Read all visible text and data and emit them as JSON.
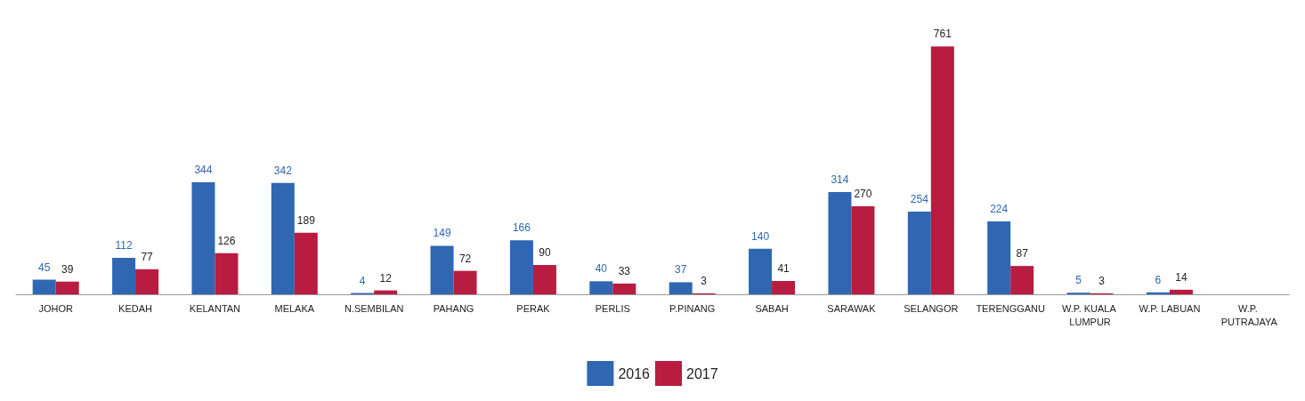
{
  "chart_data": {
    "type": "bar",
    "categories": [
      "JOHOR",
      "KEDAH",
      "KELANTAN",
      "MELAKA",
      "N.SEMBILAN",
      "PAHANG",
      "PERAK",
      "PERLIS",
      "P.PINANG",
      "SABAH",
      "SARAWAK",
      "SELANGOR",
      "TERENGGANU",
      "W.P. KUALA LUMPUR",
      "W.P. LABUAN",
      "W.P. PUTRAJAYA"
    ],
    "series": [
      {
        "name": "2016",
        "color": "#2f67b3",
        "values": [
          45,
          112,
          344,
          342,
          4,
          149,
          166,
          40,
          37,
          140,
          314,
          254,
          224,
          5,
          6,
          null
        ]
      },
      {
        "name": "2017",
        "color": "#b81c40",
        "values": [
          39,
          77,
          126,
          189,
          12,
          72,
          90,
          33,
          3,
          41,
          270,
          761,
          87,
          3,
          14,
          null
        ]
      }
    ],
    "data_labels": true,
    "legend": "bottom"
  }
}
